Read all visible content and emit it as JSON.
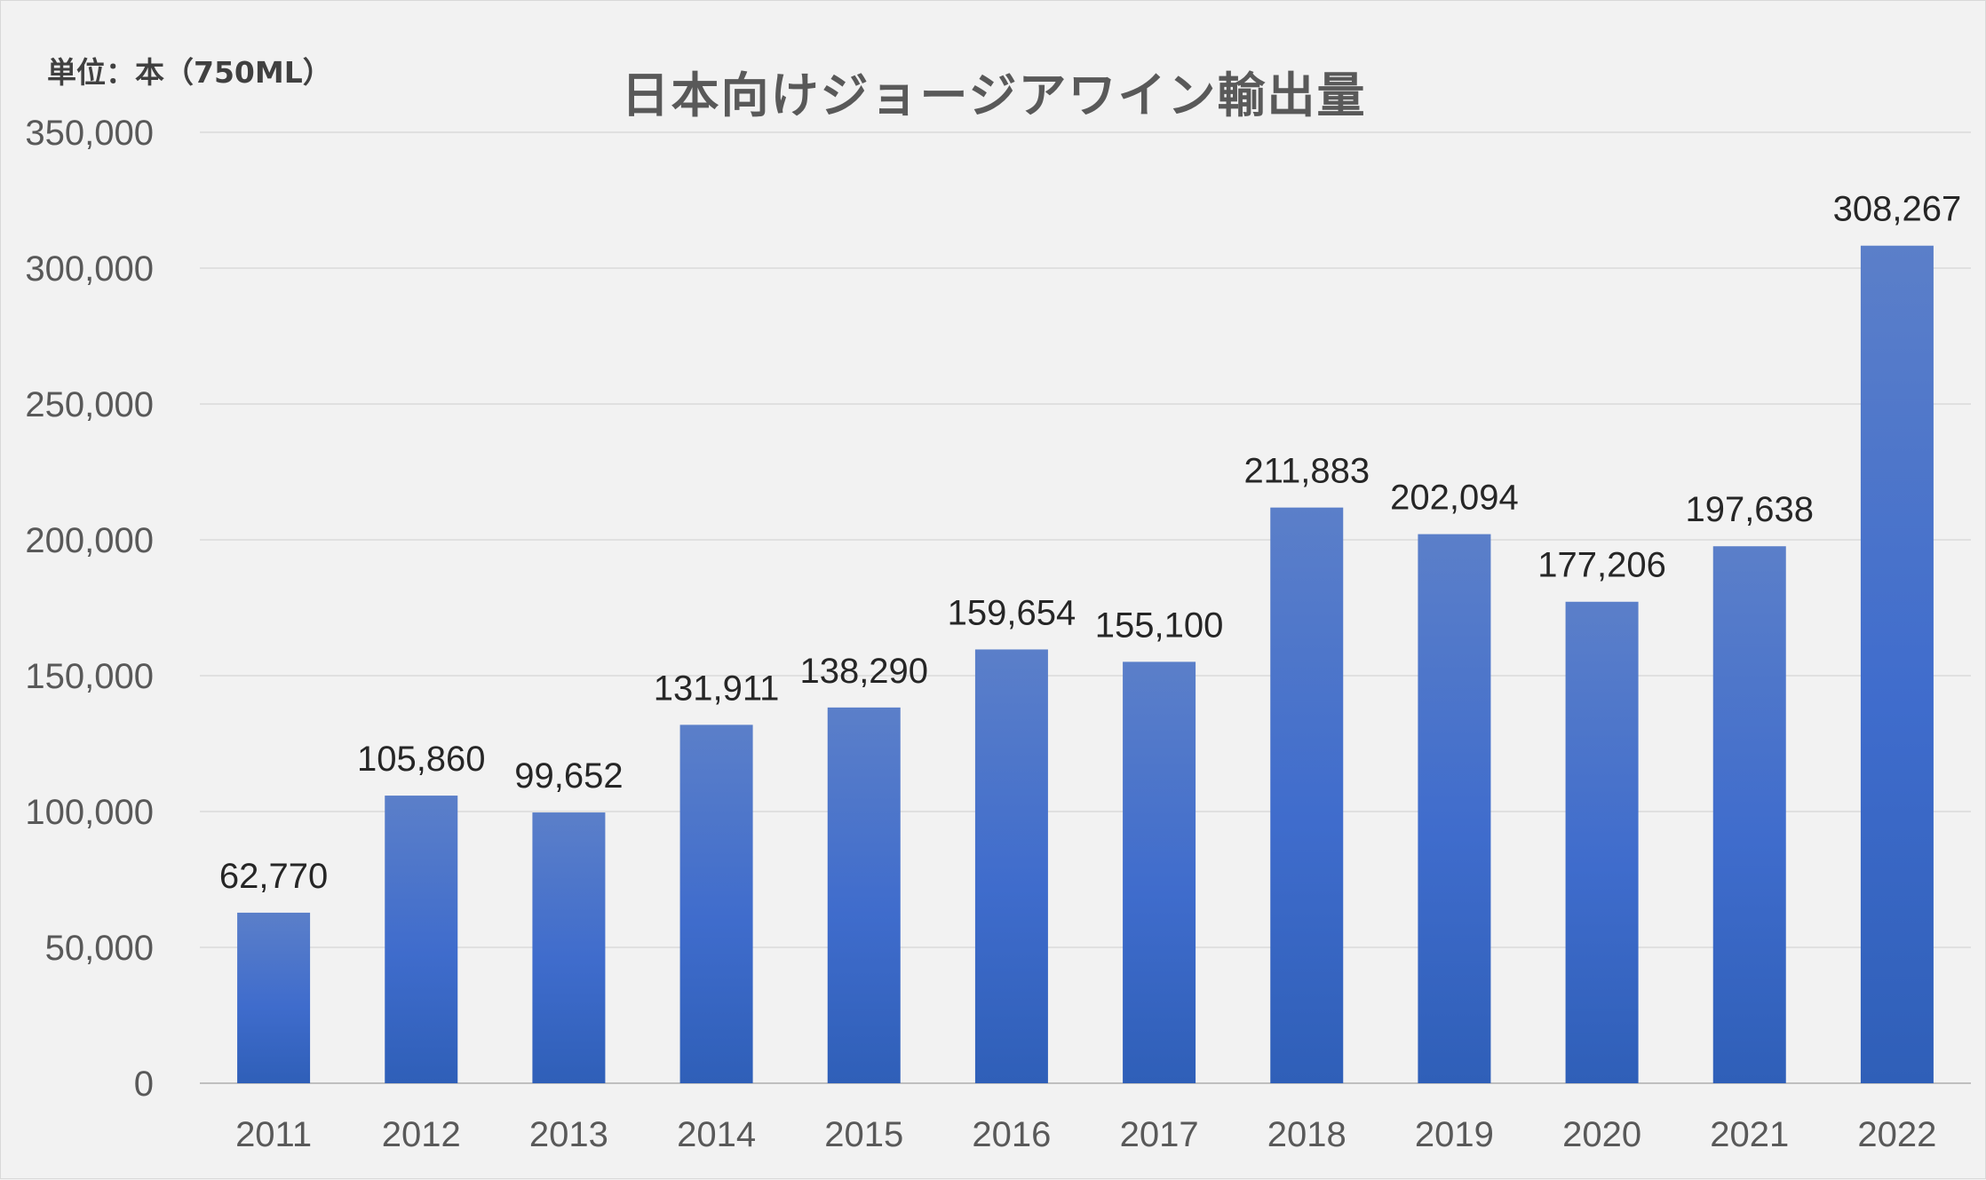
{
  "chart_data": {
    "type": "bar",
    "title": "日本向けジョージアワイン輸出量",
    "unit_label": "単位：本（750ML）",
    "xlabel": "",
    "ylabel": "",
    "categories": [
      "2011",
      "2012",
      "2013",
      "2014",
      "2015",
      "2016",
      "2017",
      "2018",
      "2019",
      "2020",
      "2021",
      "2022"
    ],
    "values": [
      62770,
      105860,
      99652,
      131911,
      138290,
      159654,
      155100,
      211883,
      202094,
      177206,
      197638,
      308267
    ],
    "data_labels": [
      "62,770",
      "105,860",
      "99,652",
      "131,911",
      "138,290",
      "159,654",
      "155,100",
      "211,883",
      "202,094",
      "177,206",
      "197,638",
      "308,267"
    ],
    "ylim": [
      0,
      350000
    ],
    "y_ticks": [
      0,
      50000,
      100000,
      150000,
      200000,
      250000,
      300000,
      350000
    ],
    "y_tick_labels": [
      "0",
      "50,000",
      "100,000",
      "150,000",
      "200,000",
      "250,000",
      "300,000",
      "350,000"
    ],
    "grid": true,
    "legend": "none",
    "colors": {
      "bar_top": "#5b7fc9",
      "bar_bottom": "#2f5fb8",
      "grid": "#d9d9d9",
      "background": "#f2f2f2"
    }
  }
}
